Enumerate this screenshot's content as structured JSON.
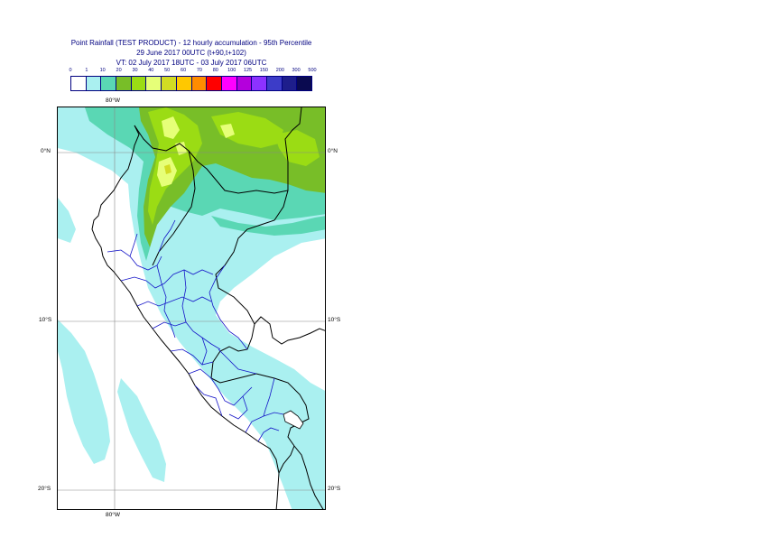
{
  "title": {
    "line1": "Point Rainfall (TEST PRODUCT) - 12 hourly accumulation - 95th Percentile",
    "line2": "29 June 2017 00UTC (t+90,t+102)",
    "line3": "VT: 02 July 2017 18UTC - 03 July 2017 06UTC"
  },
  "legend": {
    "labels": [
      "0",
      "1",
      "10",
      "20",
      "30",
      "40",
      "50",
      "60",
      "70",
      "80",
      "100",
      "125",
      "150",
      "200",
      "300",
      "500"
    ],
    "colors": [
      "#ffffff",
      "#aaf0f0",
      "#5ad7b4",
      "#78be28",
      "#9bdc14",
      "#e6ff78",
      "#d2dc23",
      "#ffc800",
      "#ff8c00",
      "#ff0000",
      "#ff00ff",
      "#b400dc",
      "#8c32ff",
      "#3c3cc8",
      "#1e1e8c",
      "#0a0a50"
    ]
  },
  "map": {
    "lon_labels": [
      "80°W",
      "80°W"
    ],
    "lat_labels": [
      "0°N",
      "0°N",
      "10°S",
      "10°S",
      "20°S",
      "20°S"
    ]
  }
}
